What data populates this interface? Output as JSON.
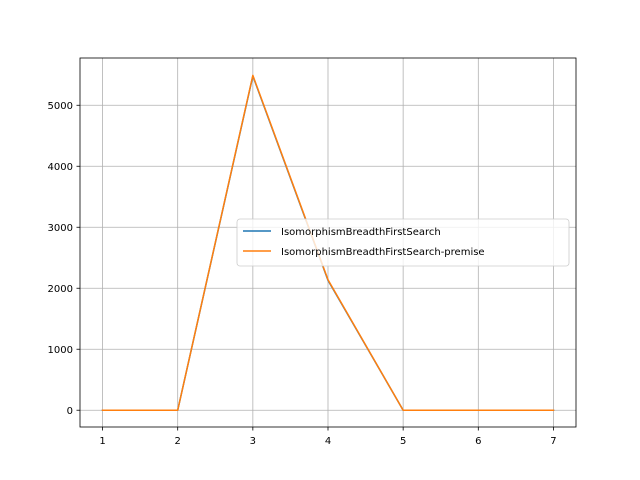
{
  "chart_data": {
    "type": "line",
    "title": "",
    "xlabel": "",
    "ylabel": "",
    "x": [
      1,
      2,
      3,
      4,
      5,
      6,
      7
    ],
    "xlim": [
      0.7,
      7.3
    ],
    "ylim": [
      -275,
      5775
    ],
    "xticks": [
      1,
      2,
      3,
      4,
      5,
      6,
      7
    ],
    "yticks": [
      0,
      1000,
      2000,
      3000,
      4000,
      5000
    ],
    "grid": true,
    "legend_position": "center-right",
    "series": [
      {
        "name": "IsomorphismBreadthFirstSearch",
        "color": "#1f77b4",
        "values": [
          0,
          0,
          5480,
          2130,
          0,
          0,
          0
        ]
      },
      {
        "name": "IsomorphismBreadthFirstSearch-premise",
        "color": "#ff7f0e",
        "values": [
          0,
          0,
          5490,
          2140,
          0,
          0,
          0
        ]
      }
    ]
  }
}
